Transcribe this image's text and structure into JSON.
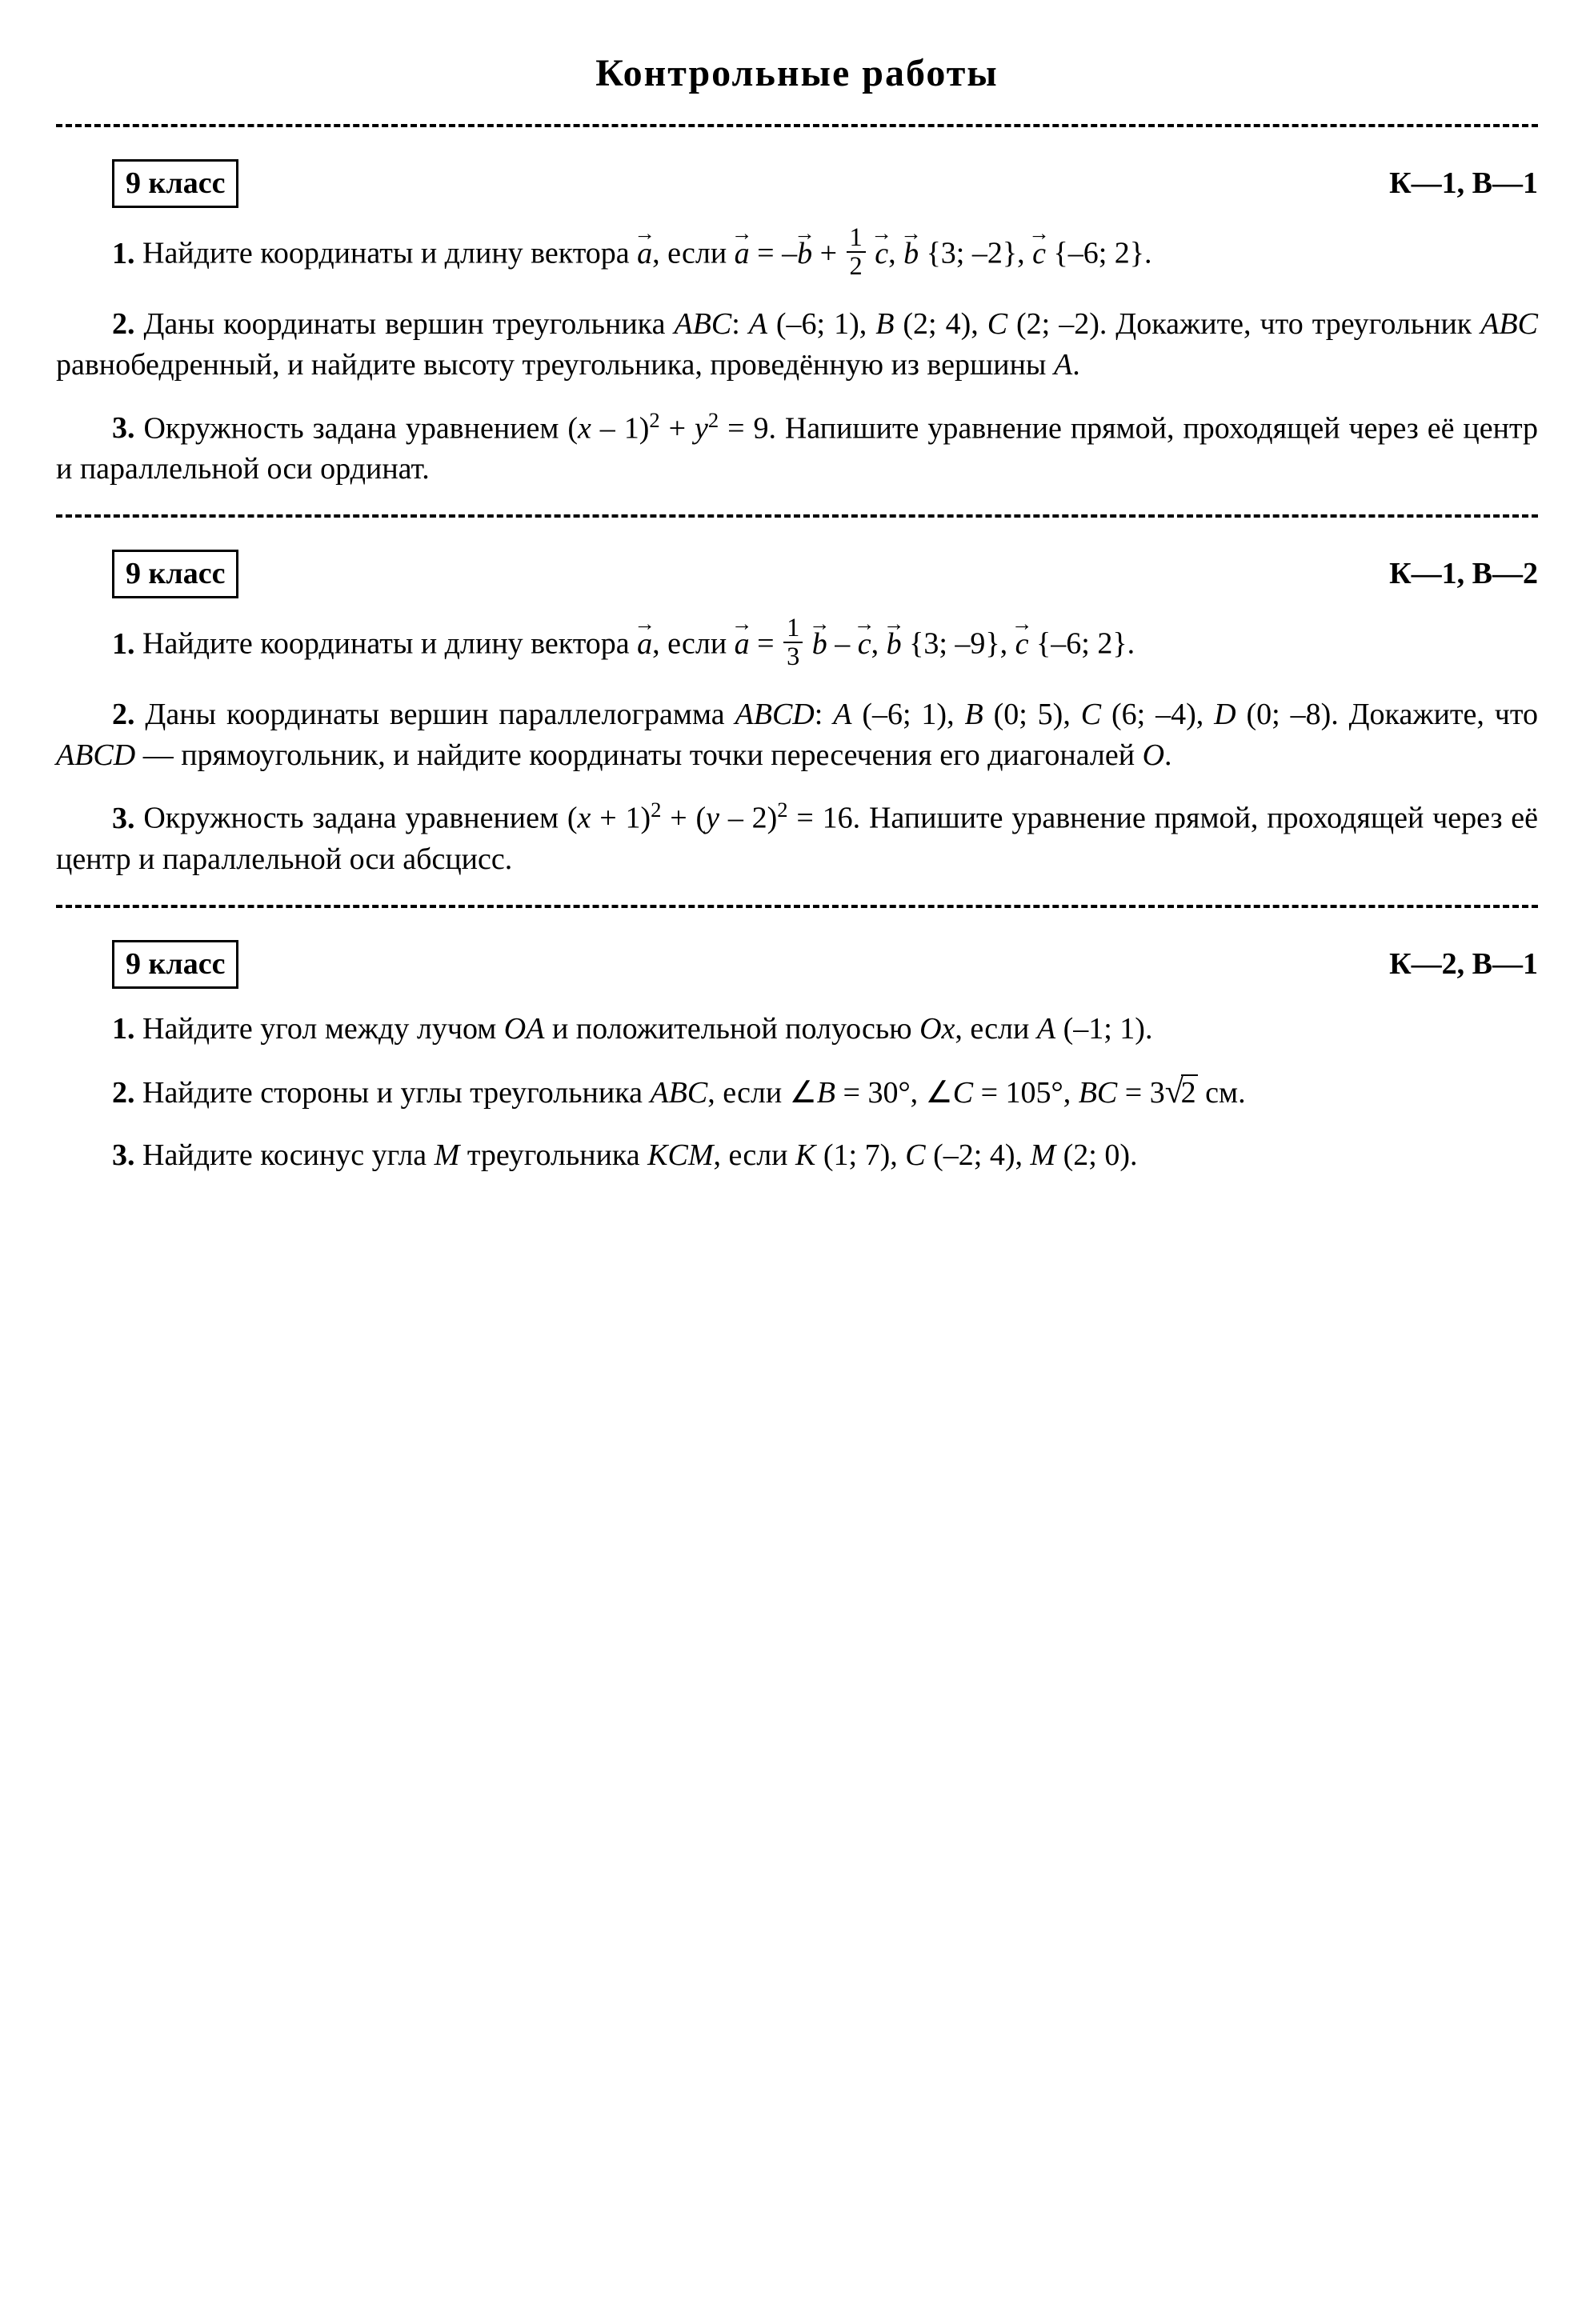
{
  "title": "Контрольные работы",
  "sections": [
    {
      "grade": "9 класс",
      "variant": "К—1, В—1",
      "problems": {
        "p1_a": "Найдите координаты и длину вектора ",
        "p1_b": ", если ",
        "p1_c": " {3; –2}, ",
        "p1_d": " {–6; 2}.",
        "p2_a": "Даны координаты вершин треугольника ",
        "p2_abc": "ABC",
        "p2_b": ": ",
        "p2_A": "A",
        "p2_c": " (–6; 1), ",
        "p2_B": "B",
        "p2_d": " (2; 4), ",
        "p2_C": "C",
        "p2_e": " (2; –2). Докажите, что треугольник ",
        "p2_f": " равнобедренный, и найдите высоту треугольника, проведённую из вершины ",
        "p2_g": ".",
        "p3_a": "Окружность задана уравнением (",
        "p3_x": "x",
        "p3_b": " – 1)",
        "p3_c": " + ",
        "p3_y": "y",
        "p3_d": " = 9. Напишите уравнение прямой, проходящей через её центр и параллельной оси ординат."
      }
    },
    {
      "grade": "9 класс",
      "variant": "К—1, В—2",
      "problems": {
        "p1_a": "Найдите координаты и длину вектора ",
        "p1_b": ", если ",
        "p1_c": " {3; –9}, ",
        "p1_d": " {–6; 2}.",
        "p2_a": "Даны координаты вершин параллелограмма ",
        "p2_abcd": "ABCD",
        "p2_b": ": ",
        "p2_A": "A",
        "p2_c": " (–6; 1), ",
        "p2_B": "B",
        "p2_d": " (0; 5), ",
        "p2_C": "C",
        "p2_e": " (6; –4), ",
        "p2_D": "D",
        "p2_f": " (0; –8). Докажите, что ",
        "p2_g": " — прямоугольник, и найдите координаты точки пересечения его диагоналей ",
        "p2_O": "O",
        "p2_h": ".",
        "p3_a": "Окружность задана уравнением (",
        "p3_x": "x",
        "p3_b": " + 1)",
        "p3_c": " + (",
        "p3_y": "y",
        "p3_d": " – 2)",
        "p3_e": " = 16. Напишите уравнение прямой, проходящей через её центр и параллельной оси абсцисс."
      }
    },
    {
      "grade": "9 класс",
      "variant": "К—2, В—1",
      "problems": {
        "p1_a": "Найдите угол между лучом ",
        "p1_OA": "OA",
        "p1_b": " и положительной полуосью ",
        "p1_Ox": "Ox",
        "p1_c": ", если ",
        "p1_A": "A",
        "p1_d": " (–1; 1).",
        "p2_a": "Найдите стороны и углы треугольника ",
        "p2_ABC": "ABC",
        "p2_b": ", если ∠",
        "p2_B": "B",
        "p2_c": " = 30°, ∠",
        "p2_C": "C",
        "p2_d": " = 105°, ",
        "p2_BC": "BC",
        "p2_e": " = 3",
        "p2_sqrt": "2",
        "p2_f": " см.",
        "p3_a": "Найдите косинус угла ",
        "p3_M": "M",
        "p3_b": " треугольника ",
        "p3_KCM": "KCM",
        "p3_c": ", если ",
        "p3_K": "K",
        "p3_d": " (1; 7), ",
        "p3_C": "C",
        "p3_e": " (–2; 4), ",
        "p3_M2": "M",
        "p3_f": " (2; 0)."
      }
    }
  ],
  "nums": {
    "n1": "1.",
    "n2": "2.",
    "n3": "3."
  },
  "vecs": {
    "a": "a",
    "b": "b",
    "c": "c"
  },
  "fracs": {
    "half_num": "1",
    "half_den": "2",
    "third_num": "1",
    "third_den": "3"
  },
  "sup2": "2"
}
